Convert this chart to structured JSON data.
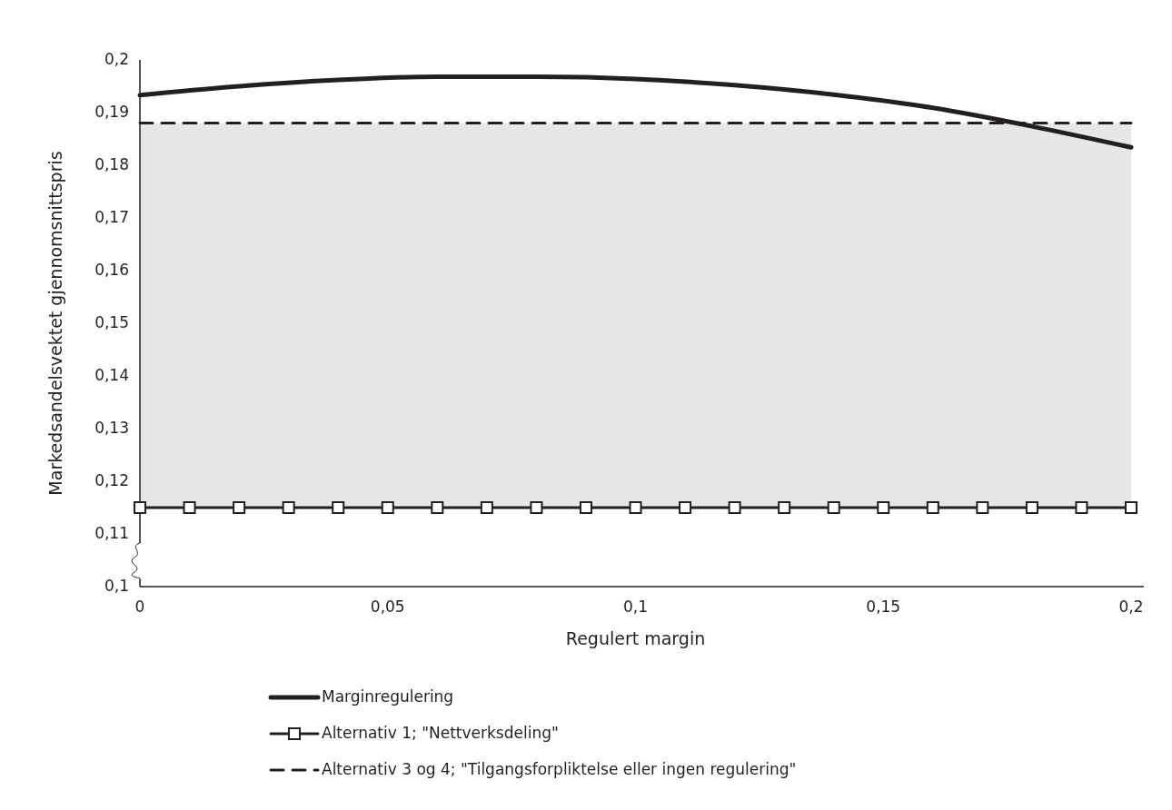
{
  "chart_data": {
    "type": "line",
    "xlabel": "Regulert margin",
    "ylabel": "Markedsandelsvektet gjennomsnittspris",
    "xlim": [
      0,
      0.2
    ],
    "ylim": [
      0.1,
      0.2
    ],
    "xticks": [
      0,
      {
        "value": 0.05,
        "label": "0,05"
      },
      {
        "value": 0.1,
        "label": "0,1"
      },
      {
        "value": 0.15,
        "label": "0,15"
      },
      {
        "value": 0.2,
        "label": "0,2"
      }
    ],
    "yticks": [
      {
        "value": 0.1,
        "label": "0,1"
      },
      {
        "value": 0.11,
        "label": "0,11"
      },
      {
        "value": 0.12,
        "label": "0,12"
      },
      {
        "value": 0.13,
        "label": "0,13"
      },
      {
        "value": 0.14,
        "label": "0,14"
      },
      {
        "value": 0.15,
        "label": "0,15"
      },
      {
        "value": 0.16,
        "label": "0,16"
      },
      {
        "value": 0.17,
        "label": "0,17"
      },
      {
        "value": 0.18,
        "label": "0,18"
      },
      {
        "value": 0.19,
        "label": "0,19"
      },
      {
        "value": 0.2,
        "label": "0,2"
      }
    ],
    "grid": false,
    "legend": "bottom",
    "bands": [
      {
        "axis": "y",
        "from": 0.115,
        "to": 0.188,
        "color": "#e6e7e8"
      }
    ],
    "series": [
      {
        "name": "Marginregulering",
        "color": "#231f20",
        "marker": "none",
        "line_style": "solid",
        "x": [
          0,
          0.02,
          0.04,
          0.06,
          0.08,
          0.1,
          0.12,
          0.14,
          0.16,
          0.18,
          0.2
        ],
        "values": [
          0.1933,
          0.195,
          0.1962,
          0.1968,
          0.1968,
          0.1964,
          0.1952,
          0.1934,
          0.1909,
          0.1874,
          0.1834
        ]
      },
      {
        "name": "Alternativ 1; \"Nettverksdeling\"",
        "color": "#231f20",
        "marker": "square",
        "line_style": "solid",
        "x": [
          0,
          0.01,
          0.02,
          0.03,
          0.04,
          0.05,
          0.06,
          0.07,
          0.08,
          0.09,
          0.1,
          0.11,
          0.12,
          0.13,
          0.14,
          0.15,
          0.16,
          0.17,
          0.18,
          0.19,
          0.2
        ],
        "values": [
          0.115,
          0.115,
          0.115,
          0.115,
          0.115,
          0.115,
          0.115,
          0.115,
          0.115,
          0.115,
          0.115,
          0.115,
          0.115,
          0.115,
          0.115,
          0.115,
          0.115,
          0.115,
          0.115,
          0.115,
          0.115
        ]
      },
      {
        "name": "Alternativ 3 og 4; \"Tilgangsforpliktelse eller ingen regulering\"",
        "color": "#231f20",
        "marker": "none",
        "line_style": "dashed",
        "x": [
          0,
          0.2
        ],
        "values": [
          0.188,
          0.188
        ]
      }
    ]
  }
}
